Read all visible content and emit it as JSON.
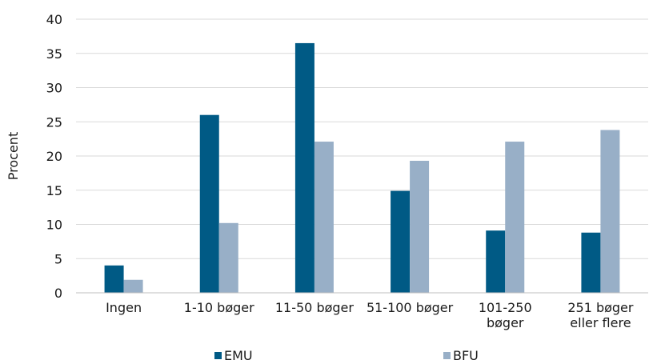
{
  "chart_data": {
    "type": "bar",
    "ylabel": "Procent",
    "xlabel": "",
    "ylim": [
      0,
      40
    ],
    "yticks": [
      0,
      5,
      10,
      15,
      20,
      25,
      30,
      35,
      40
    ],
    "grid": true,
    "legend_placement": "bottom",
    "categories": [
      [
        "Ingen"
      ],
      [
        "1-10 bøger"
      ],
      [
        "11-50 bøger"
      ],
      [
        "51-100 bøger"
      ],
      [
        "101-250",
        "bøger"
      ],
      [
        "251 bøger",
        "eller flere"
      ]
    ],
    "series": [
      {
        "name": "EMU",
        "color": "#005A85",
        "values": [
          4.0,
          26.0,
          36.5,
          14.9,
          9.1,
          8.8
        ]
      },
      {
        "name": "BFU",
        "color": "#98AFC7",
        "values": [
          1.9,
          10.2,
          22.1,
          19.3,
          22.1,
          23.8
        ]
      }
    ]
  }
}
